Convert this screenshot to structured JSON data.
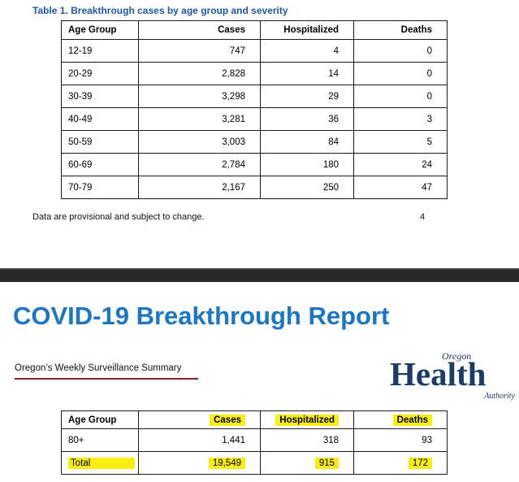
{
  "page1": {
    "title": "Table 1. Breakthrough cases by age group and severity",
    "table": {
      "headers": [
        "Age Group",
        "Cases",
        "Hospitalized",
        "Deaths"
      ],
      "rows": [
        [
          "12-19",
          "747",
          "4",
          "0"
        ],
        [
          "20-29",
          "2,828",
          "14",
          "0"
        ],
        [
          "30-39",
          "3,298",
          "29",
          "0"
        ],
        [
          "40-49",
          "3,281",
          "36",
          "3"
        ],
        [
          "50-59",
          "3,003",
          "84",
          "5"
        ],
        [
          "60-69",
          "2,784",
          "180",
          "24"
        ],
        [
          "70-79",
          "2,167",
          "250",
          "47"
        ]
      ]
    },
    "footnote": "Data are provisional and subject to change.",
    "page_number": "4"
  },
  "page2": {
    "title": "COVID-19 Breakthrough Report",
    "subtitle": "Oregon’s Weekly Surveillance Summary",
    "logo": {
      "region": "Oregon",
      "name": "Health",
      "org": "Authority"
    },
    "table": {
      "headers": [
        "Age Group",
        "Cases",
        "Hospitalized",
        "Deaths"
      ],
      "rows": [
        [
          "80+",
          "1,441",
          "318",
          "93"
        ],
        [
          "Total",
          "19,549",
          "915",
          "172"
        ]
      ]
    }
  },
  "colors": {
    "heading_blue": "#2057a7",
    "report_title_blue": "#1b76c4",
    "subtitle_rule_red": "#8c2423",
    "logo_navy": "#1b3c66",
    "highlight_yellow": "#f8ee14",
    "separator_dark": "#282828"
  }
}
